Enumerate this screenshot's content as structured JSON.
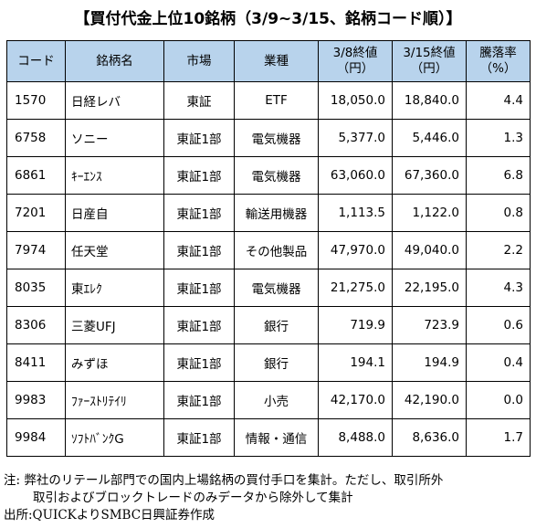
{
  "title": "【買付代金上位10銘柄（3/9~3/15、銘柄コード順）】",
  "table": {
    "headers": {
      "code": "コード",
      "name": "銘柄名",
      "market": "市場",
      "sector": "業種",
      "price1_line1": "3/8終値",
      "price1_line2": "（円）",
      "price2_line1": "3/15終値",
      "price2_line2": "（円）",
      "change_line1": "騰落率",
      "change_line2": "（%）"
    },
    "rows": [
      {
        "code": "1570",
        "name": "日経レバ",
        "market": "東証",
        "sector": "ETF",
        "price1": "18,050.0",
        "price2": "18,840.0",
        "change": "4.4"
      },
      {
        "code": "6758",
        "name": "ソニー",
        "market": "東証1部",
        "sector": "電気機器",
        "price1": "5,377.0",
        "price2": "5,446.0",
        "change": "1.3"
      },
      {
        "code": "6861",
        "name": "ｷｰｴﾝｽ",
        "market": "東証1部",
        "sector": "電気機器",
        "price1": "63,060.0",
        "price2": "67,360.0",
        "change": "6.8"
      },
      {
        "code": "7201",
        "name": "日産自",
        "market": "東証1部",
        "sector": "輸送用機器",
        "price1": "1,113.5",
        "price2": "1,122.0",
        "change": "0.8"
      },
      {
        "code": "7974",
        "name": "任天堂",
        "market": "東証1部",
        "sector": "その他製品",
        "price1": "47,970.0",
        "price2": "49,040.0",
        "change": "2.2"
      },
      {
        "code": "8035",
        "name": "東ｴﾚｸ",
        "market": "東証1部",
        "sector": "電気機器",
        "price1": "21,275.0",
        "price2": "22,195.0",
        "change": "4.3"
      },
      {
        "code": "8306",
        "name": "三菱UFJ",
        "market": "東証1部",
        "sector": "銀行",
        "price1": "719.9",
        "price2": "723.9",
        "change": "0.6"
      },
      {
        "code": "8411",
        "name": "みずほ",
        "market": "東証1部",
        "sector": "銀行",
        "price1": "194.1",
        "price2": "194.9",
        "change": "0.4"
      },
      {
        "code": "9983",
        "name": "ﾌｧｰｽﾄﾘﾃｲﾘ",
        "market": "東証1部",
        "sector": "小売",
        "price1": "42,170.0",
        "price2": "42,190.0",
        "change": "0.0"
      },
      {
        "code": "9984",
        "name": "ｿﾌﾄﾊﾞﾝｸG",
        "market": "東証1部",
        "sector": "情報・通信",
        "price1": "8,488.0",
        "price2": "8,636.0",
        "change": "1.7"
      }
    ]
  },
  "notes": {
    "line1": "注: 弊社のリテール部門での国内上場銘柄の買付手口を集計。ただし、取引所外",
    "line2": "取引およびブロックトレードのみデータから除外して集計",
    "line3": "出所:QUICKよりSMBC日興証券作成"
  }
}
